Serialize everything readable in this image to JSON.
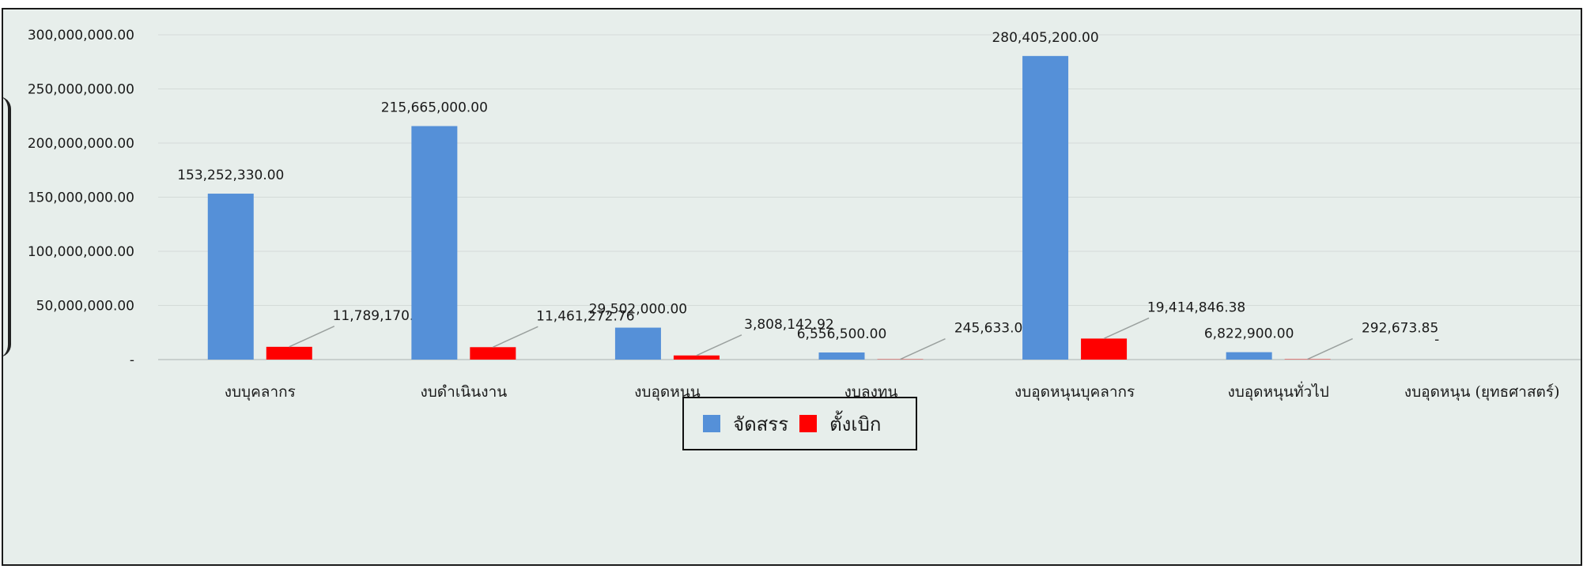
{
  "chart_data": {
    "type": "bar",
    "categories": [
      "งบบุคลากร",
      "งบดำเนินงาน",
      "งบอุดหนุน",
      "งบลงทุน",
      "งบอุดหนุนบุคลากร",
      "งบอุดหนุนทั่วไป",
      "งบอุดหนุน (ยุทธศาสตร์)"
    ],
    "series": [
      {
        "name": "จัดสรร",
        "color": "#5590d8",
        "values": [
          153252330.0,
          215665000.0,
          29502000.0,
          6556500.0,
          280405200.0,
          6822900.0,
          0
        ],
        "labels": [
          "153,252,330.00",
          "215,665,000.00",
          "29,502,000.00",
          "6,556,500.00",
          "280,405,200.00",
          "6,822,900.00",
          "-"
        ]
      },
      {
        "name": "ตั้งเบิก",
        "color": "#ff0000",
        "values": [
          11789170.9,
          11461272.76,
          3808142.92,
          245633.0,
          19414846.38,
          292673.85,
          0
        ],
        "labels": [
          "11,789,170.90",
          "11,461,272.76",
          "3,808,142.92",
          "245,633.00",
          "19,414,846.38",
          "292,673.85",
          "-"
        ]
      }
    ],
    "y_ticks": [
      {
        "value": 0,
        "label": "-"
      },
      {
        "value": 50000000,
        "label": "50,000,000.00"
      },
      {
        "value": 100000000,
        "label": "100,000,000.00"
      },
      {
        "value": 150000000,
        "label": "150,000,000.00"
      },
      {
        "value": 200000000,
        "label": "200,000,000.00"
      },
      {
        "value": 250000000,
        "label": "250,000,000.00"
      },
      {
        "value": 300000000,
        "label": "300,000,000.00"
      }
    ],
    "ylim": [
      0,
      300000000
    ],
    "grid": true,
    "legend_position": "bottom",
    "title": "",
    "xlabel": "",
    "ylabel": ""
  }
}
